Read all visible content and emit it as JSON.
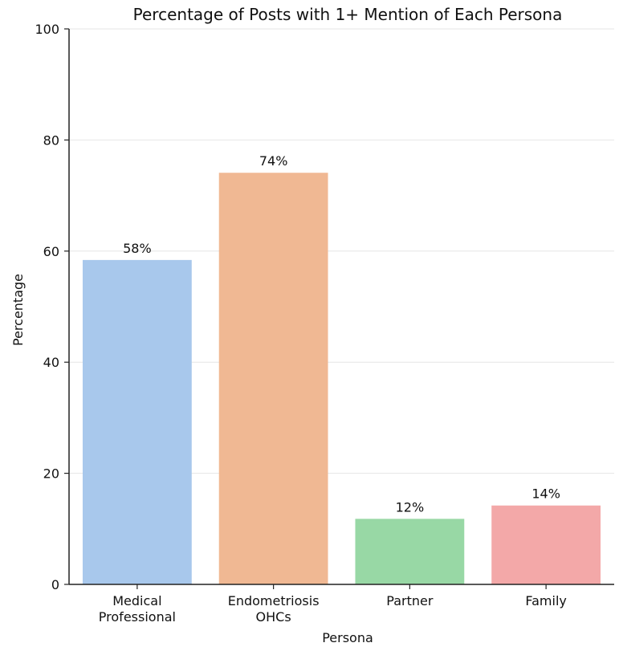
{
  "chart_data": {
    "type": "bar",
    "title": "Percentage of Posts with 1+ Mention of Each Persona",
    "xlabel": "Persona",
    "ylabel": "Percentage",
    "categories": [
      [
        "Medical",
        "Professional"
      ],
      [
        "Endometriosis",
        "OHCs"
      ],
      [
        "Partner"
      ],
      [
        "Family"
      ]
    ],
    "values": [
      58.4,
      74.1,
      11.8,
      14.2
    ],
    "data_labels": [
      "58%",
      "74%",
      "12%",
      "14%"
    ],
    "colors": [
      "#a8c8ec",
      "#f0b893",
      "#98d8a5",
      "#f3a8a8"
    ],
    "ylim": [
      0,
      100
    ],
    "yticks": [
      0,
      20,
      40,
      60,
      80,
      100
    ],
    "grid": "horizontal",
    "legend": "none"
  }
}
